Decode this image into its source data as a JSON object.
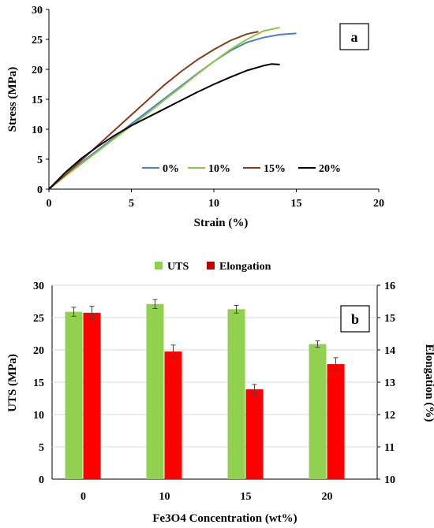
{
  "chart_data": [
    {
      "panel": "a",
      "type": "line",
      "xlabel": "Strain (%)",
      "ylabel": "Stress  (MPa)",
      "xlim": [
        0,
        20
      ],
      "ylim": [
        0,
        30
      ],
      "xticks": [
        "0",
        "5",
        "10",
        "15",
        "20"
      ],
      "yticks": [
        "0",
        "5",
        "10",
        "15",
        "20",
        "25",
        "30"
      ],
      "legend_position": "bottom-right",
      "series": [
        {
          "name": "0%",
          "color": "#4a7fd0",
          "x": [
            0,
            1,
            2,
            3,
            4,
            5,
            6,
            7,
            8,
            9,
            10,
            11,
            12,
            13,
            14,
            15
          ],
          "y": [
            0,
            2.3,
            4.5,
            6.6,
            8.7,
            10.9,
            13.0,
            15.1,
            17.2,
            19.3,
            21.3,
            23.1,
            24.5,
            25.3,
            25.8,
            26.0
          ]
        },
        {
          "name": "10%",
          "color": "#8dc63f",
          "x": [
            0,
            1,
            2,
            3,
            4,
            5,
            6,
            7,
            8,
            9,
            10,
            11,
            12,
            13,
            14
          ],
          "y": [
            0,
            2.2,
            4.3,
            6.4,
            8.5,
            10.6,
            12.7,
            14.9,
            17.0,
            19.2,
            21.3,
            23.3,
            25.0,
            26.4,
            27.0
          ]
        },
        {
          "name": "15%",
          "color": "#8b3a1a",
          "x": [
            0,
            1,
            2,
            3,
            4,
            5,
            6,
            7,
            8,
            9,
            10,
            11,
            12,
            12.7
          ],
          "y": [
            0,
            2.4,
            4.9,
            7.4,
            9.9,
            12.4,
            14.9,
            17.4,
            19.6,
            21.6,
            23.3,
            24.8,
            25.9,
            26.3
          ]
        },
        {
          "name": "20%",
          "color": "#000000",
          "x": [
            0,
            1,
            2,
            3,
            4,
            5,
            6,
            7,
            8,
            9,
            10,
            11,
            12,
            13,
            13.5,
            14
          ],
          "y": [
            0,
            2.8,
            5.2,
            7.2,
            9.0,
            10.6,
            12.0,
            13.4,
            14.8,
            16.2,
            17.5,
            18.7,
            19.8,
            20.6,
            20.9,
            20.8
          ]
        }
      ]
    },
    {
      "panel": "b",
      "type": "bar",
      "xlabel": "Fe3O4 Concentration  (wt%)",
      "ylabel": "UTS (MPa)",
      "y2label": "Elongation  (%)",
      "categories": [
        "0",
        "10",
        "15",
        "20"
      ],
      "ylim": [
        0,
        30
      ],
      "y2lim": [
        10,
        16
      ],
      "yticks": [
        "0",
        "5",
        "10",
        "15",
        "20",
        "25",
        "30"
      ],
      "y2ticks": [
        "10",
        "11",
        "12",
        "13",
        "14",
        "15",
        "16"
      ],
      "legend_position": "top",
      "series": [
        {
          "name": "UTS",
          "axis": "left",
          "color": "#92d050",
          "values": [
            25.9,
            27.1,
            26.3,
            20.9
          ],
          "errors": [
            0.7,
            0.7,
            0.6,
            0.5
          ]
        },
        {
          "name": "Elongation",
          "axis": "right",
          "color": "#ff0000",
          "values": [
            15.15,
            13.95,
            12.78,
            13.56
          ],
          "errors": [
            0.2,
            0.2,
            0.15,
            0.2
          ]
        }
      ]
    }
  ]
}
